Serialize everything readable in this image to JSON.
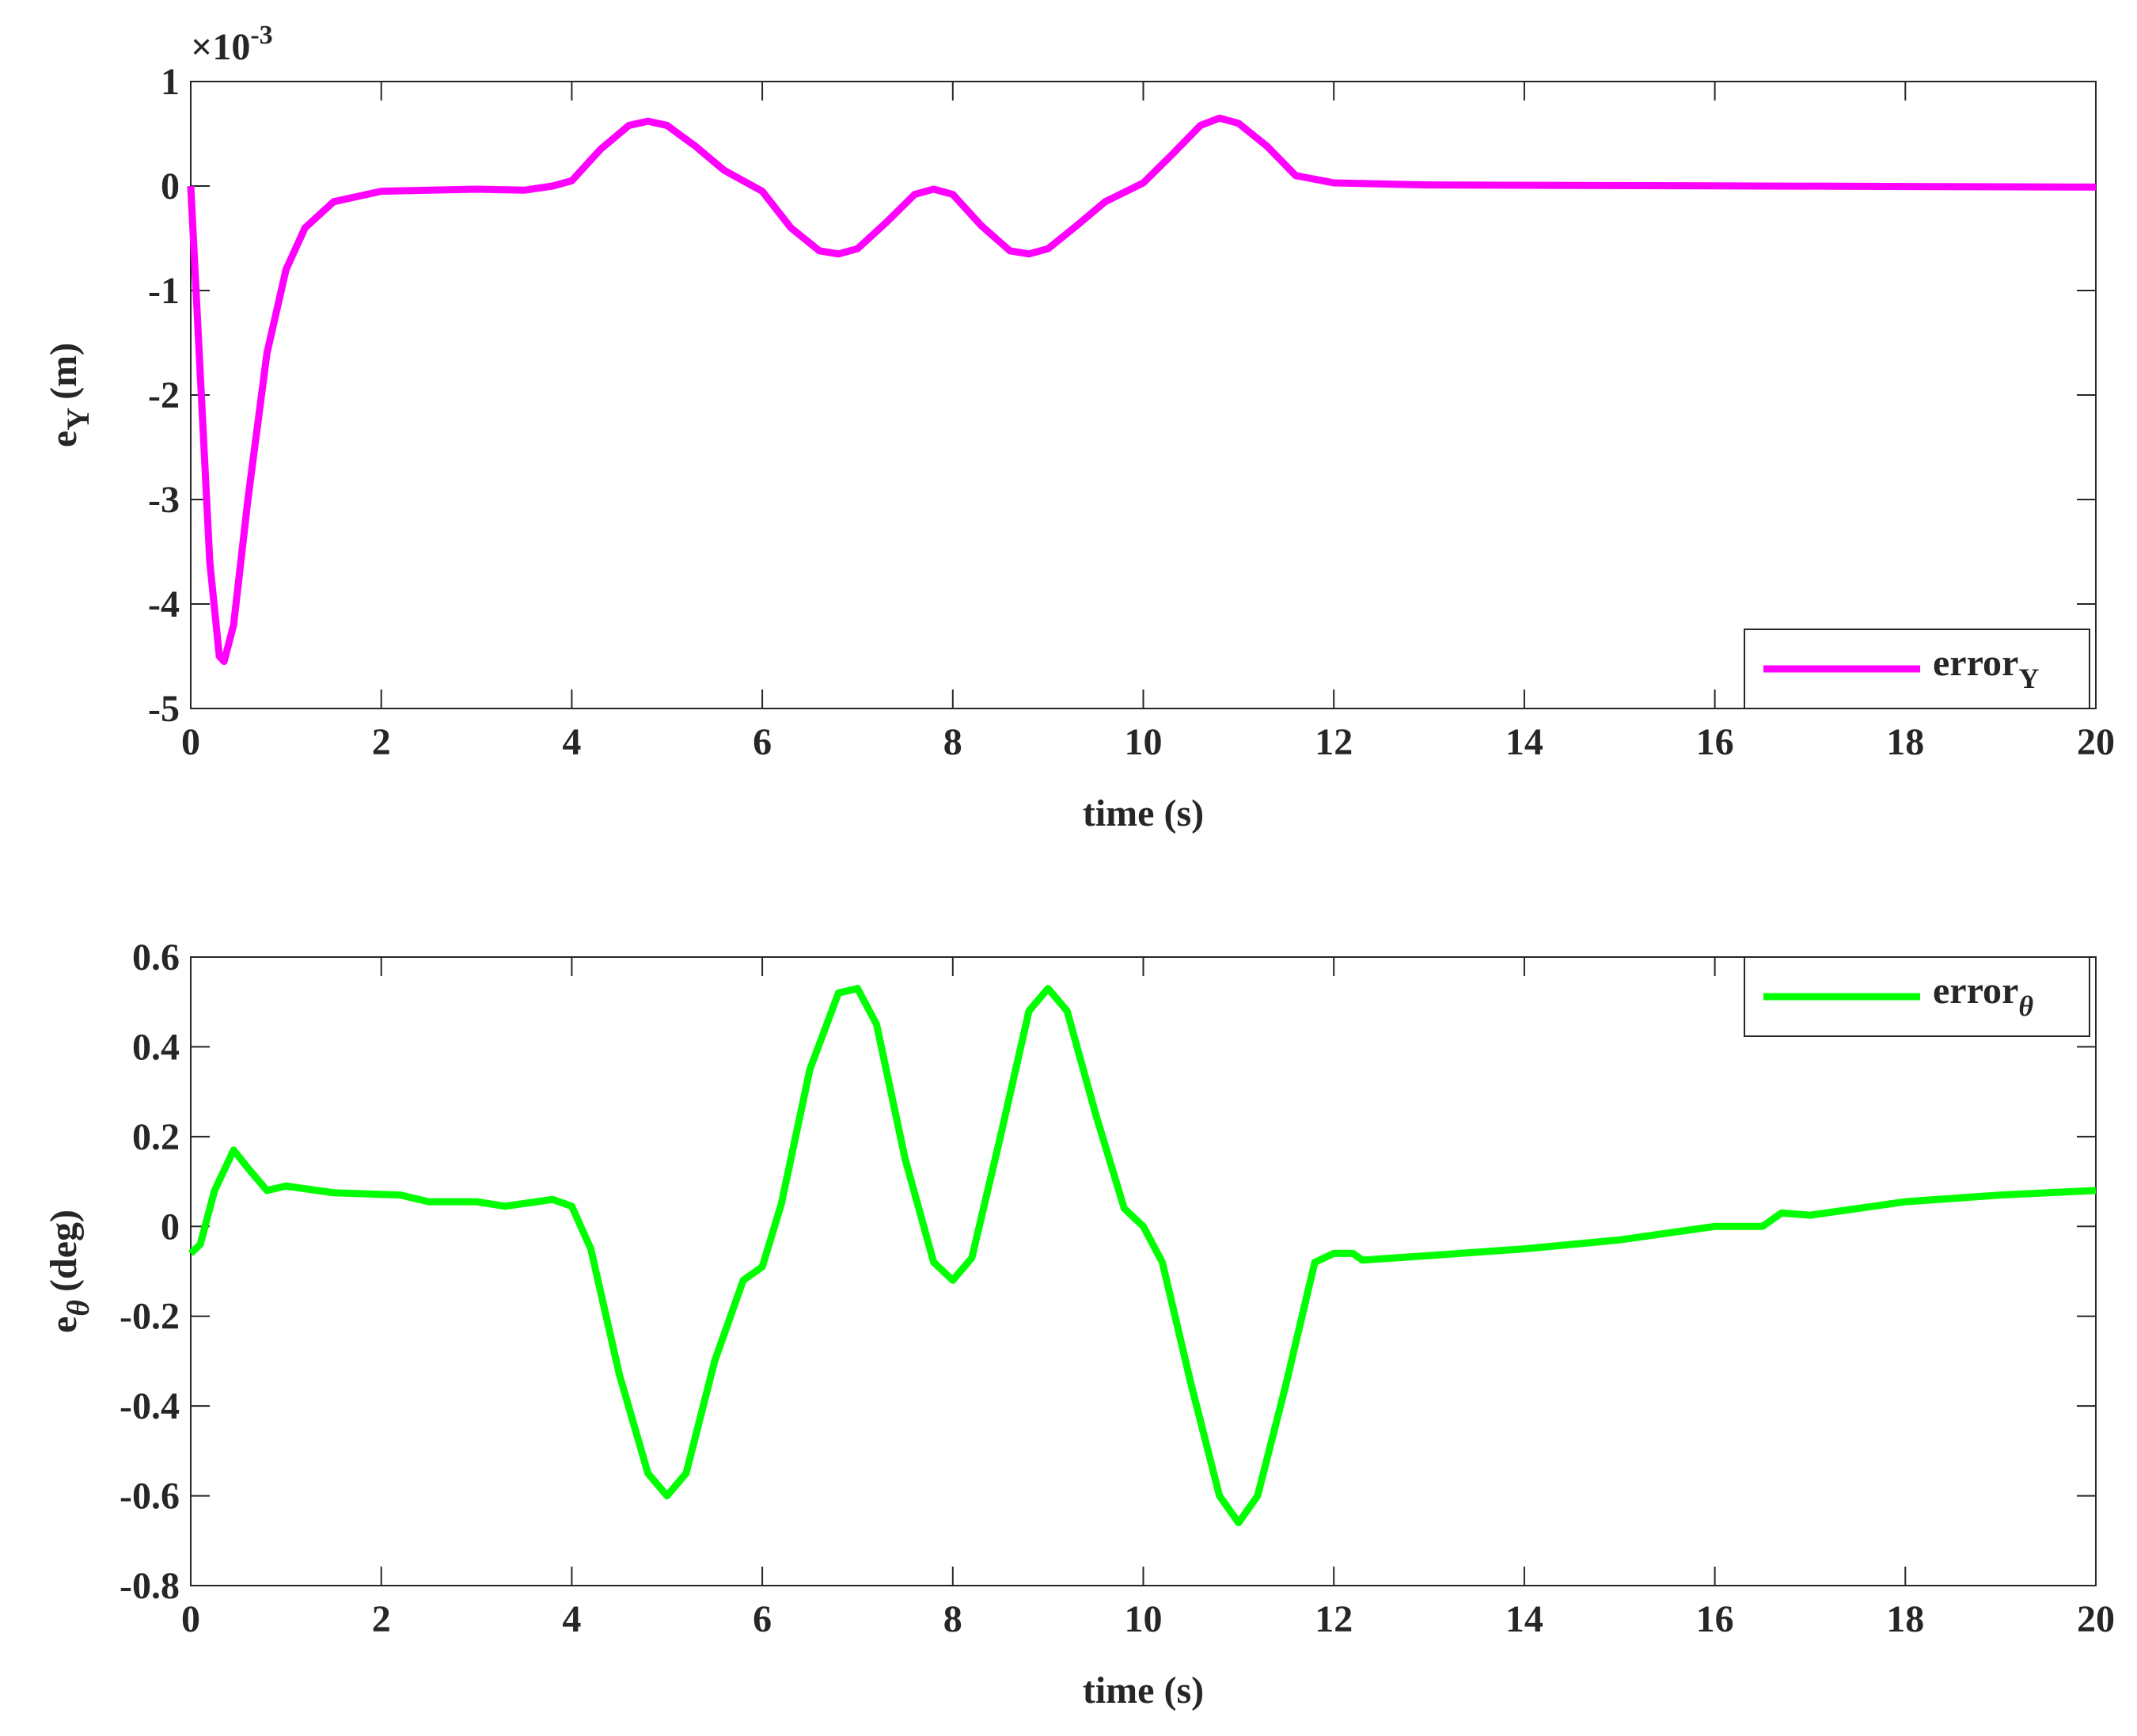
{
  "chart_data": [
    {
      "type": "line",
      "ylabel": "e",
      "ylabel_sub": "Y",
      "ylabel_unit": "(m)",
      "xlabel": "time (s)",
      "y_multiplier": "×10",
      "y_multiplier_exponent": "-3",
      "x": [
        0,
        0.1,
        0.2,
        0.3,
        0.35,
        0.45,
        0.6,
        0.8,
        1.0,
        1.2,
        1.5,
        2,
        3,
        3.5,
        3.8,
        4.0,
        4.3,
        4.6,
        4.8,
        5.0,
        5.3,
        5.6,
        6.0,
        6.3,
        6.6,
        6.8,
        7.0,
        7.3,
        7.6,
        7.8,
        8.0,
        8.3,
        8.6,
        8.8,
        9.0,
        9.3,
        9.6,
        10.0,
        10.3,
        10.6,
        10.8,
        11.0,
        11.3,
        11.6,
        12.0,
        13,
        20
      ],
      "series": [
        {
          "name": "error",
          "name_sub": "Y",
          "color": "#ff00ff",
          "values": [
            0,
            -1.8,
            -3.6,
            -4.5,
            -4.55,
            -4.2,
            -3.0,
            -1.6,
            -0.8,
            -0.4,
            -0.15,
            -0.05,
            -0.03,
            -0.04,
            0,
            0.05,
            0.35,
            0.58,
            0.62,
            0.58,
            0.38,
            0.15,
            -0.05,
            -0.4,
            -0.62,
            -0.65,
            -0.6,
            -0.35,
            -0.08,
            -0.03,
            -0.08,
            -0.38,
            -0.62,
            -0.65,
            -0.6,
            -0.38,
            -0.15,
            0.03,
            0.3,
            0.58,
            0.65,
            0.6,
            0.38,
            0.1,
            0.03,
            0.01,
            -0.01
          ]
        }
      ],
      "xlim": [
        0,
        20
      ],
      "xticks": [
        0,
        2,
        4,
        6,
        8,
        10,
        12,
        14,
        16,
        18,
        20
      ],
      "ylim": [
        -5,
        1
      ],
      "yticks": [
        -5,
        -4,
        -3,
        -2,
        -1,
        0,
        1
      ],
      "legend": "lower right"
    },
    {
      "type": "line",
      "ylabel": "e",
      "ylabel_sub": "θ",
      "ylabel_unit": "(deg)",
      "xlabel": "time (s)",
      "x": [
        0,
        0.1,
        0.25,
        0.45,
        0.6,
        0.8,
        1.0,
        1.5,
        2.2,
        2.5,
        3.0,
        3.3,
        3.8,
        4.0,
        4.2,
        4.5,
        4.8,
        5.0,
        5.2,
        5.5,
        5.8,
        6.0,
        6.2,
        6.5,
        6.8,
        7.0,
        7.2,
        7.5,
        7.8,
        8.0,
        8.2,
        8.5,
        8.8,
        9.0,
        9.2,
        9.5,
        9.8,
        10.0,
        10.2,
        10.5,
        10.8,
        11.0,
        11.2,
        11.5,
        11.8,
        12.0,
        12.2,
        12.3,
        13,
        14,
        15,
        16,
        16.5,
        16.7,
        17,
        18,
        19,
        20
      ],
      "series": [
        {
          "name": "error",
          "name_sub": "θ",
          "color": "#00ff00",
          "values": [
            -0.06,
            -0.04,
            0.08,
            0.17,
            0.13,
            0.08,
            0.09,
            0.075,
            0.07,
            0.055,
            0.055,
            0.045,
            0.06,
            0.045,
            -0.05,
            -0.33,
            -0.55,
            -0.6,
            -0.55,
            -0.3,
            -0.12,
            -0.09,
            0.05,
            0.35,
            0.52,
            0.53,
            0.45,
            0.15,
            -0.08,
            -0.12,
            -0.07,
            0.2,
            0.48,
            0.53,
            0.48,
            0.25,
            0.04,
            0.0,
            -0.08,
            -0.35,
            -0.6,
            -0.66,
            -0.6,
            -0.35,
            -0.08,
            -0.06,
            -0.06,
            -0.075,
            -0.065,
            -0.05,
            -0.03,
            0.0,
            0.0,
            0.03,
            0.025,
            0.055,
            0.07,
            0.08
          ]
        }
      ],
      "xlim": [
        0,
        20
      ],
      "xticks": [
        0,
        2,
        4,
        6,
        8,
        10,
        12,
        14,
        16,
        18,
        20
      ],
      "ylim": [
        -0.8,
        0.6
      ],
      "yticks": [
        -0.8,
        -0.6,
        -0.4,
        -0.2,
        0,
        0.2,
        0.4,
        0.6
      ],
      "legend": "upper right"
    }
  ]
}
